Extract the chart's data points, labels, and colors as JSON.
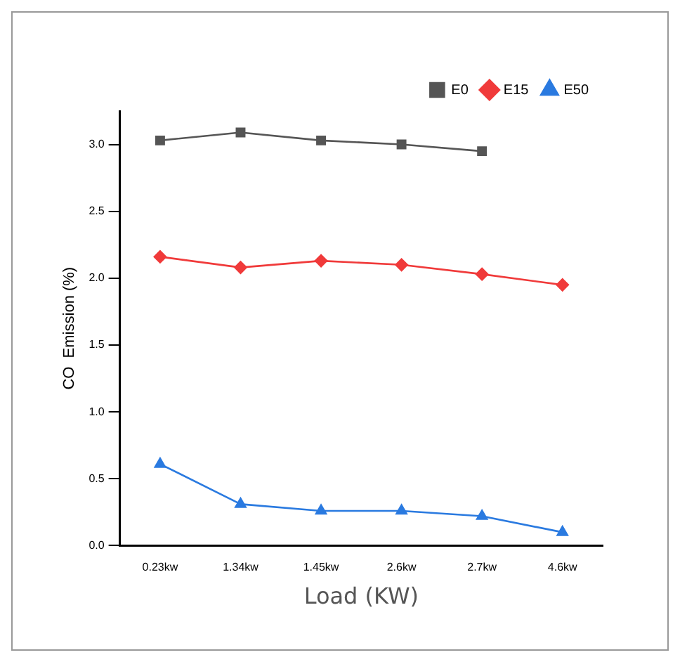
{
  "chart_data": {
    "type": "line",
    "xlabel": "Load (KW)",
    "ylabel": "CO  Emission (%)",
    "categories": [
      "0.23kw",
      "1.34kw",
      "1.45kw",
      "2.6kw",
      "2.7kw",
      "4.6kw"
    ],
    "series": [
      {
        "name": "E0",
        "color": "#555555",
        "marker": "square",
        "values": [
          3.03,
          3.09,
          3.03,
          3.0,
          2.95,
          null
        ]
      },
      {
        "name": "E15",
        "color": "#f03a3a",
        "marker": "diamond",
        "values": [
          2.16,
          2.08,
          2.13,
          2.1,
          2.03,
          1.95
        ]
      },
      {
        "name": "E50",
        "color": "#2a7ae0",
        "marker": "triangle",
        "values": [
          0.61,
          0.31,
          0.26,
          0.26,
          0.22,
          0.1
        ]
      }
    ],
    "ylim": [
      0,
      3.25
    ],
    "yticks": [
      {
        "value": 0,
        "label": "0.0"
      },
      0.5,
      {
        "value": 1,
        "label": "1.0"
      },
      1.5,
      {
        "value": 2,
        "label": "2.0"
      },
      2.5,
      {
        "value": 3,
        "label": "3.0"
      }
    ],
    "grid": false,
    "legend": "top right"
  }
}
